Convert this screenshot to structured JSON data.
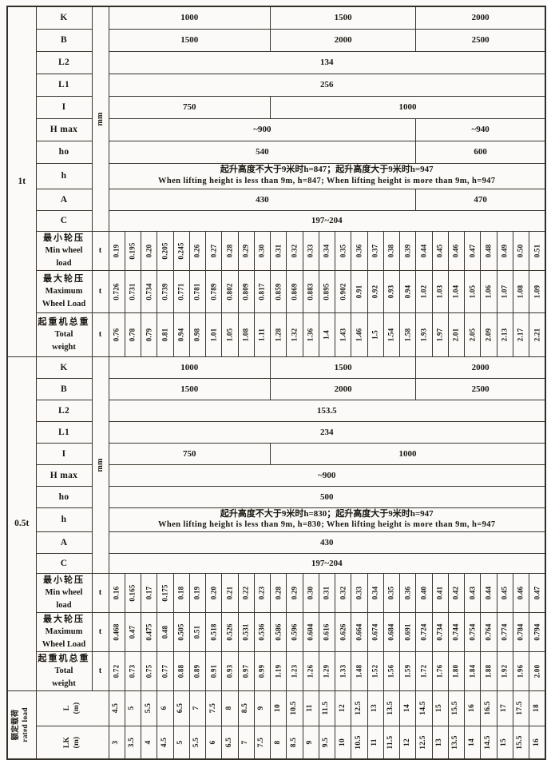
{
  "table_title": "crane-specification-table",
  "columns": 27,
  "sections": [
    {
      "section_label": "1t",
      "dim_unit": "mm",
      "dim_rows": [
        {
          "label": "K",
          "cells": [
            {
              "text": "1000",
              "span": 10
            },
            {
              "text": "1500",
              "span": 9
            },
            {
              "text": "2000",
              "span": 8
            }
          ]
        },
        {
          "label": "B",
          "cells": [
            {
              "text": "1500",
              "span": 10
            },
            {
              "text": "2000",
              "span": 9
            },
            {
              "text": "2500",
              "span": 8
            }
          ]
        },
        {
          "label": "L2",
          "cells": [
            {
              "text": "134",
              "span": 27
            }
          ]
        },
        {
          "label": "L1",
          "cells": [
            {
              "text": "256",
              "span": 27
            }
          ]
        },
        {
          "label": "I",
          "cells": [
            {
              "text": "750",
              "span": 10
            },
            {
              "text": "1000",
              "span": 17
            }
          ]
        },
        {
          "label": "H max",
          "cells": [
            {
              "text": "~900",
              "span": 19
            },
            {
              "text": "~940",
              "span": 8
            }
          ]
        },
        {
          "label": "ho",
          "cells": [
            {
              "text": "540",
              "span": 19
            },
            {
              "text": "600",
              "span": 8
            }
          ]
        },
        {
          "label": "h",
          "cells": [
            {
              "note_cn": "起升高度不大于9米时h=847；起升高度大于9米时h=947",
              "note_en": "When lifting height is less than 9m, h=847; When lifting height is more than 9m, h=947",
              "span": 27
            }
          ]
        },
        {
          "label": "A",
          "cells": [
            {
              "text": "430",
              "span": 19
            },
            {
              "text": "470",
              "span": 8
            }
          ]
        },
        {
          "label": "C",
          "cells": [
            {
              "text": "197~204",
              "span": 27
            }
          ]
        }
      ],
      "load_rows": [
        {
          "label_cn": "最小轮压",
          "label_en1": "Min wheel",
          "label_en2": "load",
          "unit": "t",
          "values": [
            "0.19",
            "0.195",
            "0.20",
            "0.205",
            "0.245",
            "0.26",
            "0.27",
            "0.28",
            "0.29",
            "0.30",
            "0.31",
            "0.32",
            "0.33",
            "0.34",
            "0.35",
            "0.36",
            "0.37",
            "0.38",
            "0.39",
            "0.44",
            "0.45",
            "0.46",
            "0.47",
            "0.48",
            "0.49",
            "0.50",
            "0.51"
          ]
        },
        {
          "label_cn": "最大轮压",
          "label_en1": "Maximum",
          "label_en2": "Wheel Load",
          "unit": "t",
          "values": [
            "0.726",
            "0.731",
            "0.734",
            "0.739",
            "0.771",
            "0.781",
            "0.789",
            "0.802",
            "0.809",
            "0.817",
            "0.859",
            "0.869",
            "0.883",
            "0.895",
            "0.902",
            "0.91",
            "0.92",
            "0.93",
            "0.94",
            "1.02",
            "1.03",
            "1.04",
            "1.05",
            "1.06",
            "1.07",
            "1.08",
            "1.09"
          ]
        },
        {
          "label_cn": "起重机总重",
          "label_en1": "Total",
          "label_en2": "weight",
          "unit": "t",
          "values": [
            "0.76",
            "0.78",
            "0.79",
            "0.81",
            "0.94",
            "0.98",
            "1.01",
            "1.05",
            "1.08",
            "1.11",
            "1.28",
            "1.32",
            "1.36",
            "1.4",
            "1.43",
            "1.46",
            "1.5",
            "1.54",
            "1.58",
            "1.93",
            "1.97",
            "2.01",
            "2.05",
            "2.09",
            "2.13",
            "2.17",
            "2.21"
          ]
        }
      ]
    },
    {
      "section_label": "0.5t",
      "dim_unit": "mm",
      "dim_rows": [
        {
          "label": "K",
          "cells": [
            {
              "text": "1000",
              "span": 10
            },
            {
              "text": "1500",
              "span": 9
            },
            {
              "text": "2000",
              "span": 8
            }
          ]
        },
        {
          "label": "B",
          "cells": [
            {
              "text": "1500",
              "span": 10
            },
            {
              "text": "2000",
              "span": 9
            },
            {
              "text": "2500",
              "span": 8
            }
          ]
        },
        {
          "label": "L2",
          "cells": [
            {
              "text": "153.5",
              "span": 27
            }
          ]
        },
        {
          "label": "L1",
          "cells": [
            {
              "text": "234",
              "span": 27
            }
          ]
        },
        {
          "label": "I",
          "cells": [
            {
              "text": "750",
              "span": 10
            },
            {
              "text": "1000",
              "span": 17
            }
          ]
        },
        {
          "label": "H max",
          "cells": [
            {
              "text": "~900",
              "span": 27
            }
          ]
        },
        {
          "label": "ho",
          "cells": [
            {
              "text": "500",
              "span": 27
            }
          ]
        },
        {
          "label": "h",
          "cells": [
            {
              "note_cn": "起升高度不大于9米时h=830；起升高度大于9米时h=947",
              "note_en": "When lifting height is less than 9m, h=830; When lifting height is more than 9m, h=947",
              "span": 27
            }
          ]
        },
        {
          "label": "A",
          "cells": [
            {
              "text": "430",
              "span": 27
            }
          ]
        },
        {
          "label": "C",
          "cells": [
            {
              "text": "197~204",
              "span": 27
            }
          ]
        }
      ],
      "load_rows": [
        {
          "label_cn": "最小轮压",
          "label_en1": "Min wheel",
          "label_en2": "load",
          "unit": "t",
          "values": [
            "0.16",
            "0.165",
            "0.17",
            "0.175",
            "0.18",
            "0.19",
            "0.20",
            "0.21",
            "0.22",
            "0.23",
            "0.28",
            "0.29",
            "0.30",
            "0.31",
            "0.32",
            "0.33",
            "0.34",
            "0.35",
            "0.36",
            "0.40",
            "0.41",
            "0.42",
            "0.43",
            "0.44",
            "0.45",
            "0.46",
            "0.47"
          ]
        },
        {
          "label_cn": "最大轮压",
          "label_en1": "Maximum",
          "label_en2": "Wheel Load",
          "unit": "t",
          "values": [
            "0.468",
            "0.47",
            "0.475",
            "0.48",
            "0.505",
            "0.51",
            "0.518",
            "0.526",
            "0.531",
            "0.536",
            "0.586",
            "0.596",
            "0.604",
            "0.616",
            "0.626",
            "0.664",
            "0.674",
            "0.684",
            "0.691",
            "0.724",
            "0.734",
            "0.744",
            "0.754",
            "0.764",
            "0.774",
            "0.784",
            "0.794"
          ]
        },
        {
          "label_cn": "起重机总重",
          "label_en1": "Total",
          "label_en2": "weight",
          "unit": "t",
          "values": [
            "0.72",
            "0.73",
            "0.75",
            "0.77",
            "0.88",
            "0.89",
            "0.91",
            "0.93",
            "0.97",
            "0.99",
            "1.19",
            "1.23",
            "1.26",
            "1.29",
            "1.33",
            "1.48",
            "1.52",
            "1.56",
            "1.59",
            "1.72",
            "1.76",
            "1.80",
            "1.84",
            "1.88",
            "1.92",
            "1.96",
            "2.00"
          ]
        }
      ]
    }
  ],
  "footer": {
    "section_label_cn": "额定载荷",
    "section_label_en": "rated load",
    "rows": [
      {
        "label": "L",
        "unit": "(m)",
        "values": [
          "4.5",
          "5",
          "5.5",
          "6",
          "6.5",
          "7",
          "7.5",
          "8",
          "8.5",
          "9",
          "10",
          "10.5",
          "11",
          "11.5",
          "12",
          "12.5",
          "13",
          "13.5",
          "14",
          "14.5",
          "15",
          "15.5",
          "16",
          "16.5",
          "17",
          "17.5",
          "18"
        ]
      },
      {
        "label": "LK",
        "unit": "(m)",
        "values": [
          "3",
          "3.5",
          "4",
          "4.5",
          "5",
          "5.5",
          "6",
          "6.5",
          "7",
          "7.5",
          "8",
          "8.5",
          "9",
          "9.5",
          "10",
          "10.5",
          "11",
          "11.5",
          "12",
          "12.5",
          "13",
          "13.5",
          "14",
          "14.5",
          "15",
          "15.5",
          "16"
        ]
      }
    ]
  }
}
